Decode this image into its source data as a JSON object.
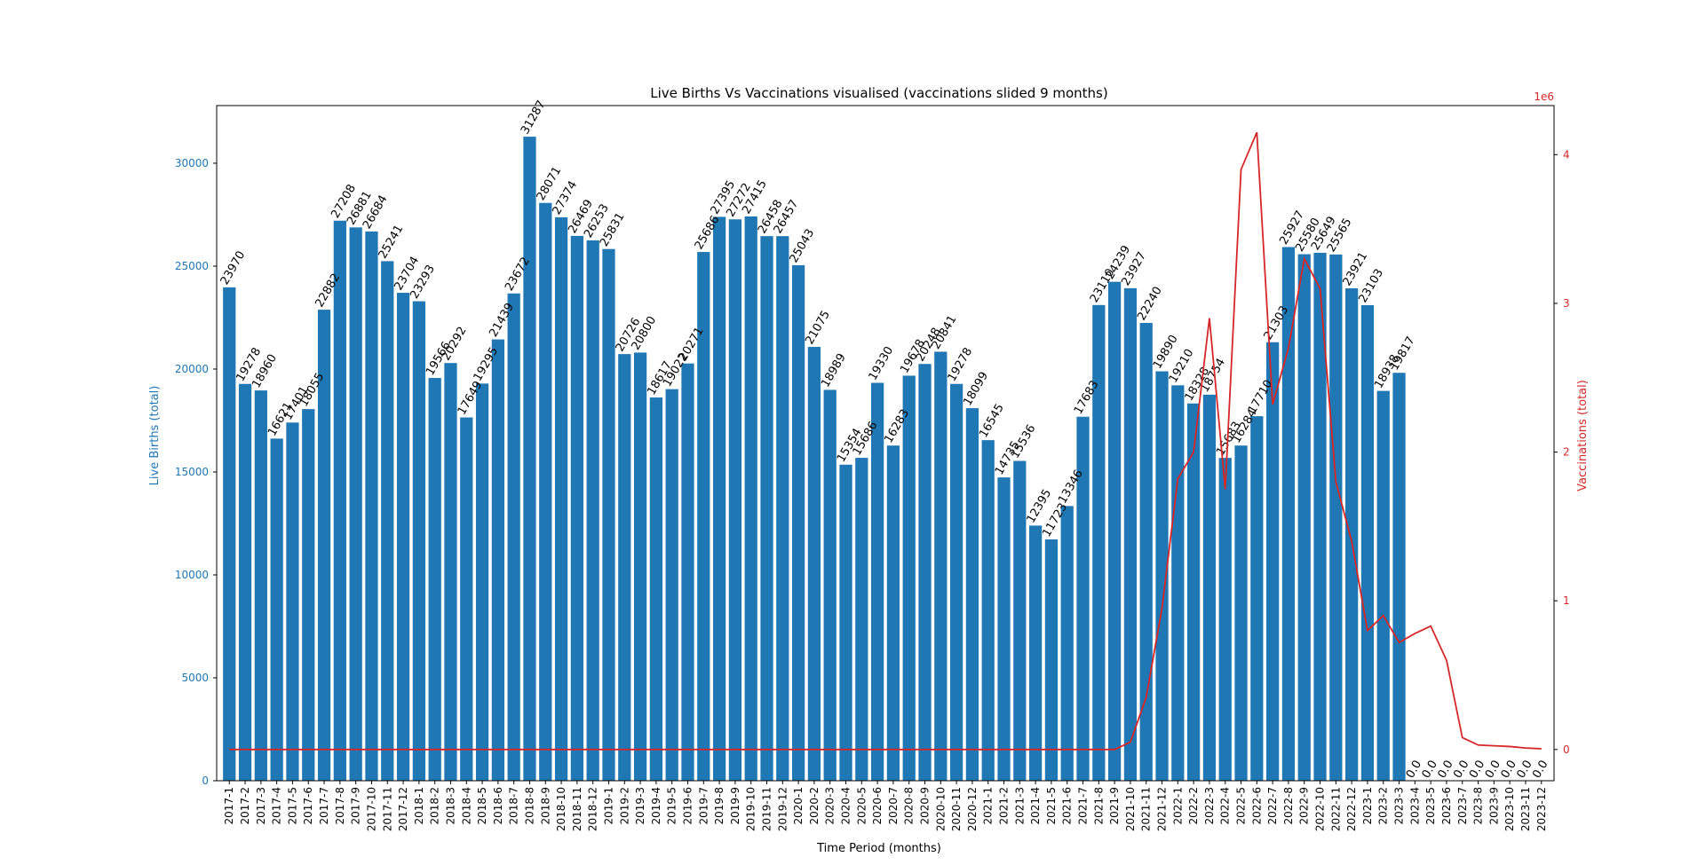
{
  "chart_data": {
    "type": "bar",
    "title": "Live Births Vs Vaccinations visualised (vaccinations slided 9 months)",
    "xlabel": "Time Period (months)",
    "ylabel": "Live Births (total)",
    "y2label": "Vaccinations (total)",
    "y2_offset_label": "1e6",
    "ylim": [
      0,
      32800
    ],
    "y2lim": [
      -0.21,
      4.33
    ],
    "yticks": [
      0,
      5000,
      10000,
      15000,
      20000,
      25000,
      30000
    ],
    "y2ticks": [
      0,
      1,
      2,
      3,
      4
    ],
    "grid": false,
    "colors": {
      "bars": "#1f77b4",
      "line": "#d62728",
      "left_axis": "#1f77b4",
      "right_axis": "#d62728"
    },
    "categories": [
      "2017-1",
      "2017-2",
      "2017-3",
      "2017-4",
      "2017-5",
      "2017-6",
      "2017-7",
      "2017-8",
      "2017-9",
      "2017-10",
      "2017-11",
      "2017-12",
      "2018-1",
      "2018-2",
      "2018-3",
      "2018-4",
      "2018-5",
      "2018-6",
      "2018-7",
      "2018-8",
      "2018-9",
      "2018-10",
      "2018-11",
      "2018-12",
      "2019-1",
      "2019-2",
      "2019-3",
      "2019-4",
      "2019-5",
      "2019-6",
      "2019-7",
      "2019-8",
      "2019-9",
      "2019-10",
      "2019-11",
      "2019-12",
      "2020-1",
      "2020-2",
      "2020-3",
      "2020-4",
      "2020-5",
      "2020-6",
      "2020-7",
      "2020-8",
      "2020-9",
      "2020-10",
      "2020-11",
      "2020-12",
      "2021-1",
      "2021-2",
      "2021-3",
      "2021-4",
      "2021-5",
      "2021-6",
      "2021-7",
      "2021-8",
      "2021-9",
      "2021-10",
      "2021-11",
      "2021-12",
      "2022-1",
      "2022-2",
      "2022-3",
      "2022-4",
      "2022-5",
      "2022-6",
      "2022-7",
      "2022-8",
      "2022-9",
      "2022-10",
      "2022-11",
      "2022-12",
      "2023-1",
      "2023-2",
      "2023-3",
      "2023-4",
      "2023-5",
      "2023-6",
      "2023-7",
      "2023-8",
      "2023-9",
      "2023-10",
      "2023-11",
      "2023-12"
    ],
    "bar_values": [
      23970,
      19278,
      18960,
      16621,
      17401,
      18055,
      22882,
      27208,
      26881,
      26684,
      25241,
      23704,
      23293,
      19566,
      20292,
      17649,
      19295,
      21439,
      23672,
      31287,
      28071,
      27374,
      26469,
      26253,
      25831,
      20726,
      20800,
      18617,
      19022,
      20271,
      25686,
      27395,
      27272,
      27415,
      26458,
      26457,
      25043,
      21075,
      18989,
      15354,
      15686,
      19330,
      16283,
      19678,
      20248,
      20841,
      19278,
      18099,
      16545,
      14735,
      15536,
      12395,
      11723,
      13346,
      17683,
      23110,
      24239,
      23927,
      22240,
      19890,
      19210,
      18328,
      18754,
      15683,
      16284,
      17710,
      21303,
      25927,
      25580,
      25649,
      25565,
      23921,
      23103,
      18938,
      19817,
      0,
      0,
      0,
      0,
      0,
      0,
      0,
      0,
      0
    ],
    "bar_labels": [
      "23970",
      "19278",
      "18960",
      "16621",
      "17401",
      "18055",
      "22882",
      "27208",
      "26881",
      "26684",
      "25241",
      "23704",
      "23293",
      "19566",
      "20292",
      "17649",
      "19295",
      "21439",
      "23672",
      "31287",
      "28071",
      "27374",
      "26469",
      "26253",
      "25831",
      "20726",
      "20800",
      "18617",
      "19022",
      "20271",
      "25686",
      "27395",
      "27272",
      "27415",
      "26458",
      "26457",
      "25043",
      "21075",
      "18989",
      "15354",
      "15686",
      "19330",
      "16283",
      "19678",
      "20248",
      "20841",
      "19278",
      "18099",
      "16545",
      "14735",
      "15536",
      "12395",
      "11723",
      "13346",
      "17683",
      "23110",
      "24239",
      "23927",
      "22240",
      "19890",
      "19210",
      "18328",
      "18754",
      "15683",
      "16284",
      "17710",
      "21303",
      "25927",
      "25580",
      "25649",
      "25565",
      "23921",
      "23103",
      "18938",
      "19817",
      "0.0",
      "0.0",
      "0.0",
      "0.0",
      "0.0",
      "0.0",
      "0.0",
      "0.0",
      "0.0"
    ],
    "line_values_millions": [
      0,
      0,
      0,
      0,
      0,
      0,
      0,
      0,
      0,
      0,
      0,
      0,
      0,
      0,
      0,
      0,
      0,
      0,
      0,
      0,
      0,
      0,
      0,
      0,
      0,
      0,
      0,
      0,
      0,
      0,
      0,
      0,
      0,
      0,
      0,
      0,
      0,
      0,
      0,
      0,
      0,
      0,
      0,
      0,
      0,
      0,
      0,
      0,
      0,
      0,
      0,
      0,
      0,
      0,
      0,
      0,
      0,
      0.05,
      0.35,
      0.95,
      1.82,
      2.0,
      2.9,
      1.75,
      3.9,
      4.15,
      2.32,
      2.7,
      3.3,
      3.1,
      1.8,
      1.4,
      0.8,
      0.9,
      0.72,
      0.78,
      0.83,
      0.6,
      0.08,
      0.03,
      0.025,
      0.02,
      0.01,
      0.005
    ]
  }
}
